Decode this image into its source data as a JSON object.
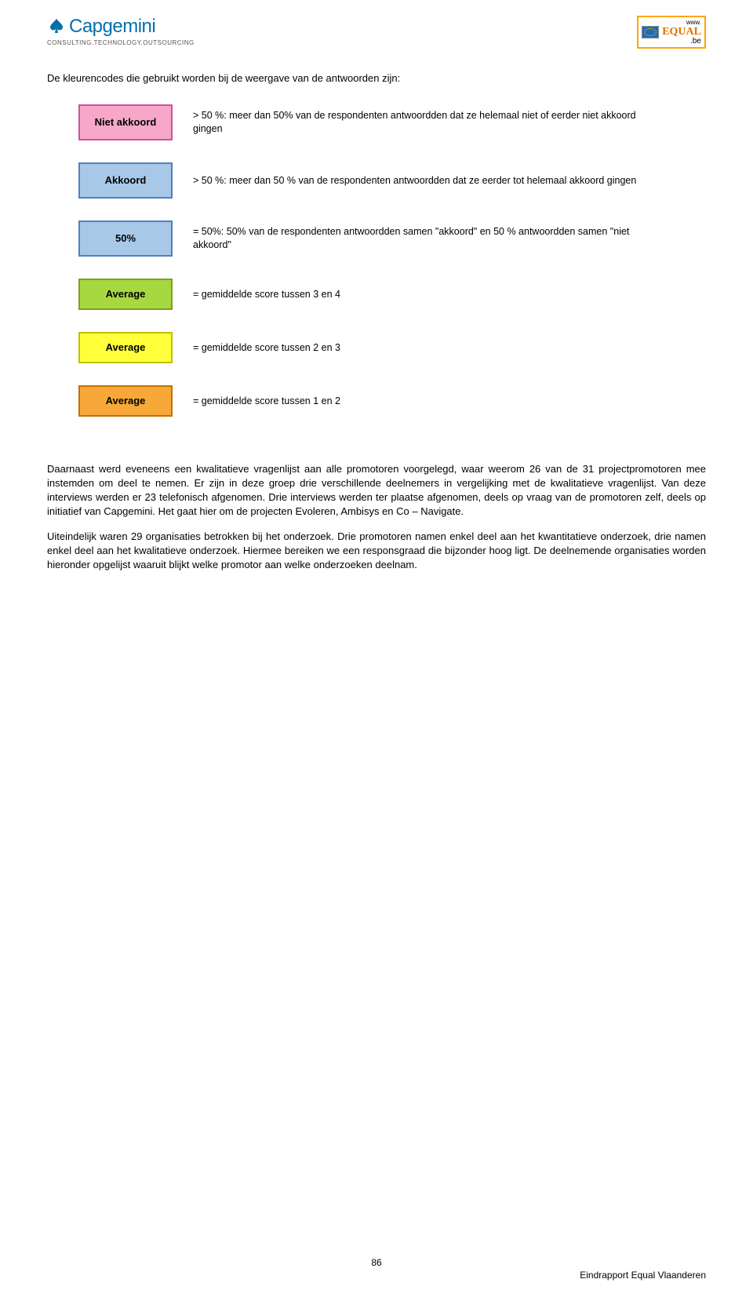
{
  "header": {
    "capgemini_name": "Capgemini",
    "capgemini_tagline": "CONSULTING.TECHNOLOGY.OUTSOURCING",
    "equal_www": "www.",
    "equal_name": "EQUAL",
    "equal_be": ".be"
  },
  "intro": "De kleurencodes die gebruikt worden bij de weergave van de antwoorden zijn:",
  "legend": [
    {
      "label": "Niet akkoord",
      "bg": "#f7a8c9",
      "border": "#d050a0",
      "desc": "> 50 %: meer dan 50% van de respondenten antwoordden dat ze helemaal niet of eerder niet akkoord gingen"
    },
    {
      "label": "Akkoord",
      "bg": "#a8c8e8",
      "border": "#5080c0",
      "desc": "> 50 %: meer dan 50 % van de respondenten antwoordden dat ze eerder tot helemaal akkoord gingen"
    },
    {
      "label": "50%",
      "bg": "#a8c8e8",
      "border": "#5080c0",
      "desc": "= 50%: 50% van de respondenten antwoordden samen \"akkoord\" en 50 % antwoordden samen \"niet akkoord\""
    },
    {
      "label": "Average",
      "bg": "#a8d840",
      "border": "#7aa020",
      "desc": "= gemiddelde score tussen 3 en 4"
    },
    {
      "label": "Average",
      "bg": "#ffff3a",
      "border": "#c0c000",
      "desc": "= gemiddelde score tussen 2 en 3"
    },
    {
      "label": "Average",
      "bg": "#f7a838",
      "border": "#c47000",
      "desc": "= gemiddelde score tussen 1 en 2"
    }
  ],
  "paragraphs": [
    "Daarnaast werd eveneens een kwalitatieve vragenlijst aan alle promotoren voorgelegd, waar weerom 26 van de 31 projectpromotoren mee instemden om deel te nemen. Er zijn in deze groep drie verschillende deelnemers in vergelijking met de kwalitatieve vragenlijst. Van deze interviews werden er 23 telefonisch afgenomen. Drie interviews werden ter plaatse afgenomen, deels op vraag van de promotoren zelf, deels op initiatief van Capgemini. Het gaat hier om de projecten Evoleren, Ambisys en Co – Navigate.",
    "Uiteindelijk waren 29 organisaties betrokken bij het onderzoek. Drie promotoren namen enkel deel aan het kwantitatieve onderzoek, drie namen enkel deel aan het kwalitatieve onderzoek. Hiermee bereiken we een responsgraad die bijzonder hoog ligt. De deelnemende organisaties worden hieronder opgelijst waaruit blijkt welke promotor aan welke onderzoeken deelnam."
  ],
  "page_number": "86",
  "footer": "Eindrapport Equal Vlaanderen",
  "legend_border_width": 2,
  "legend_label_fontsize": "13px",
  "desc_fontsize": "12.5px",
  "para_fontsize": "13px"
}
